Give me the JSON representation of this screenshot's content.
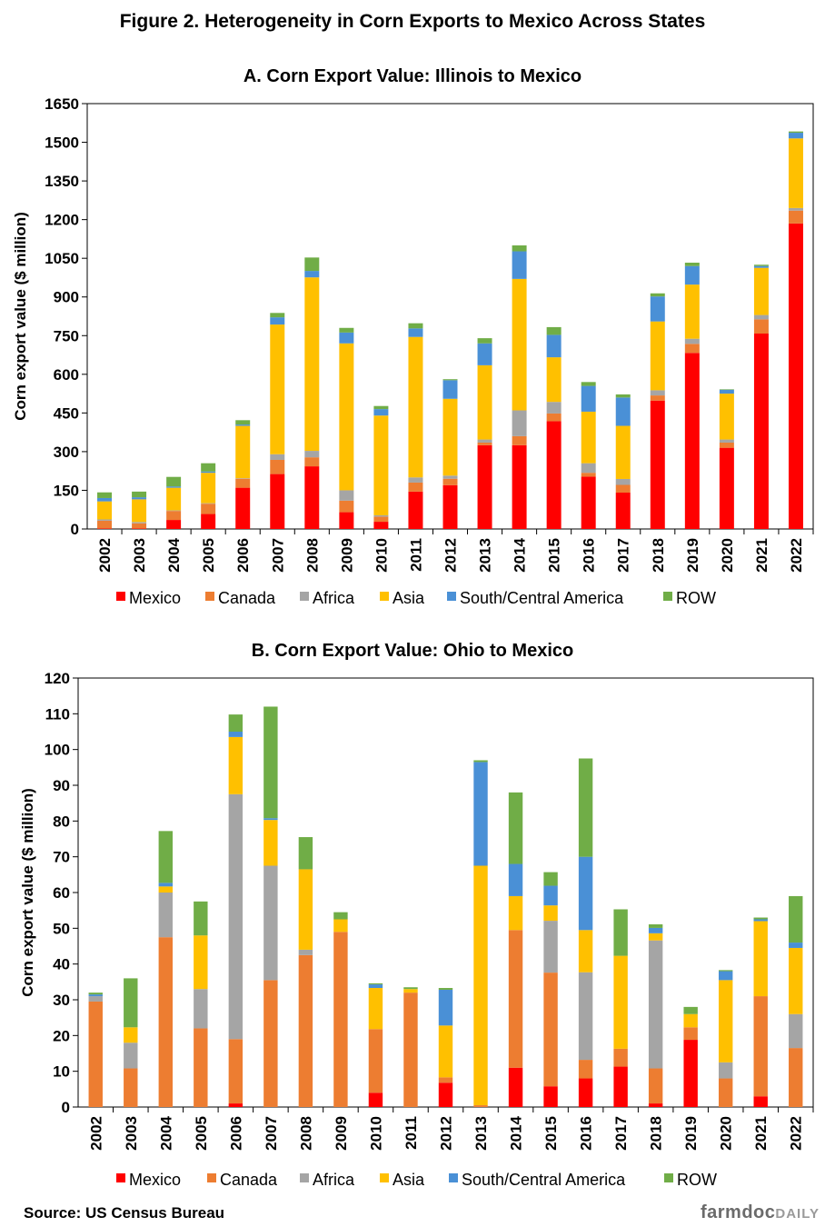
{
  "figure_title": "Figure 2. Heterogeneity in Corn Exports to Mexico Across States",
  "source": "Source: US Census Bureau",
  "brand": {
    "part1": "farmdoc",
    "part2": "DAILY"
  },
  "colors": {
    "Mexico": "#ff0000",
    "Canada": "#ed7d31",
    "Africa": "#a5a5a5",
    "Asia": "#ffc000",
    "South/Central America": "#4a90d6",
    "ROW": "#70ad47"
  },
  "chart_data": [
    {
      "id": "A",
      "type": "bar",
      "stacked": true,
      "title": "A. Corn Export Value: Illinois  to Mexico",
      "ylabel": "Corn export value ($ million)",
      "xlabel": "",
      "ylim": [
        0,
        1650
      ],
      "yticks": [
        0,
        150,
        300,
        450,
        600,
        750,
        900,
        1050,
        1200,
        1350,
        1500,
        1650
      ],
      "grid": false,
      "legend": "bottom",
      "categories": [
        "2002",
        "2003",
        "2004",
        "2005",
        "2006",
        "2007",
        "2008",
        "2009",
        "2010",
        "2011",
        "2012",
        "2013",
        "2014",
        "2015",
        "2016",
        "2017",
        "2018",
        "2019",
        "2020",
        "2021",
        "2022"
      ],
      "series": [
        {
          "name": "Mexico",
          "values": [
            2,
            2,
            35,
            58,
            160,
            213,
            243,
            65,
            28,
            145,
            170,
            325,
            325,
            418,
            203,
            141,
            498,
            683,
            315,
            758,
            1185
          ]
        },
        {
          "name": "Canada",
          "values": [
            30,
            20,
            35,
            40,
            35,
            55,
            35,
            45,
            20,
            35,
            25,
            10,
            35,
            30,
            15,
            30,
            20,
            35,
            20,
            55,
            50
          ]
        },
        {
          "name": "Africa",
          "values": [
            5,
            5,
            2,
            2,
            2,
            22,
            25,
            40,
            5,
            20,
            12,
            12,
            100,
            45,
            37,
            23,
            20,
            20,
            12,
            17,
            10
          ]
        },
        {
          "name": "Asia",
          "values": [
            70,
            88,
            88,
            118,
            203,
            503,
            673,
            570,
            387,
            545,
            298,
            288,
            510,
            173,
            200,
            206,
            267,
            210,
            178,
            183,
            270
          ]
        },
        {
          "name": "South/Central America",
          "values": [
            13,
            8,
            5,
            5,
            5,
            28,
            25,
            42,
            25,
            33,
            72,
            85,
            107,
            87,
            100,
            110,
            97,
            72,
            15,
            7,
            22
          ]
        },
        {
          "name": "ROW",
          "values": [
            22,
            22,
            37,
            32,
            17,
            17,
            52,
            18,
            12,
            20,
            4,
            20,
            23,
            30,
            15,
            12,
            12,
            13,
            2,
            5,
            5
          ]
        }
      ]
    },
    {
      "id": "B",
      "type": "bar",
      "stacked": true,
      "title": "B. Corn Export Value: Ohio to Mexico",
      "ylabel": "Corn export value ($ million)",
      "xlabel": "",
      "ylim": [
        0,
        120
      ],
      "yticks": [
        0,
        10,
        20,
        30,
        40,
        50,
        60,
        70,
        80,
        90,
        100,
        110,
        120
      ],
      "grid": false,
      "legend": "bottom",
      "categories": [
        "2002",
        "2003",
        "2004",
        "2005",
        "2006",
        "2007",
        "2008",
        "2009",
        "2010",
        "2011",
        "2012",
        "2013",
        "2014",
        "2015",
        "2016",
        "2017",
        "2018",
        "2019",
        "2020",
        "2021",
        "2022"
      ],
      "series": [
        {
          "name": "Mexico",
          "values": [
            0,
            0,
            0,
            0,
            1,
            0,
            0,
            0,
            4,
            0,
            6.8,
            0,
            11,
            5.8,
            8,
            11.3,
            1,
            18.8,
            0,
            3,
            0
          ]
        },
        {
          "name": "Canada",
          "values": [
            29.5,
            10.8,
            47.5,
            22,
            18,
            35.5,
            42.5,
            49,
            17.8,
            32,
            1.5,
            0.5,
            38.5,
            31.8,
            5.2,
            5,
            9.8,
            3.5,
            8,
            28,
            16.5
          ]
        },
        {
          "name": "Africa",
          "values": [
            1.5,
            7.2,
            12.5,
            11,
            68.5,
            32,
            1.5,
            0,
            0,
            0,
            0,
            0,
            0,
            14.5,
            24.5,
            0,
            35.8,
            0,
            4.5,
            0,
            9.5
          ]
        },
        {
          "name": "Asia",
          "values": [
            0,
            4.3,
            1.7,
            15,
            16,
            12.8,
            22.5,
            3.5,
            11.5,
            1,
            14.5,
            67,
            9.5,
            4.3,
            11.8,
            26,
            2,
            3.7,
            23,
            21,
            18.5
          ]
        },
        {
          "name": "South/Central America",
          "values": [
            0.5,
            0,
            1,
            0,
            1.5,
            0.5,
            0,
            0,
            1,
            0,
            10,
            29,
            9,
            5.5,
            20.5,
            0,
            1.5,
            0,
            2.5,
            0.5,
            1.5
          ]
        },
        {
          "name": "ROW",
          "values": [
            0.5,
            13.7,
            14.5,
            9.5,
            4.8,
            31.2,
            9,
            2,
            0.3,
            0.5,
            0.5,
            0.5,
            20,
            3.8,
            27.5,
            13,
            1,
            2,
            0.3,
            0.5,
            13
          ]
        }
      ]
    }
  ]
}
